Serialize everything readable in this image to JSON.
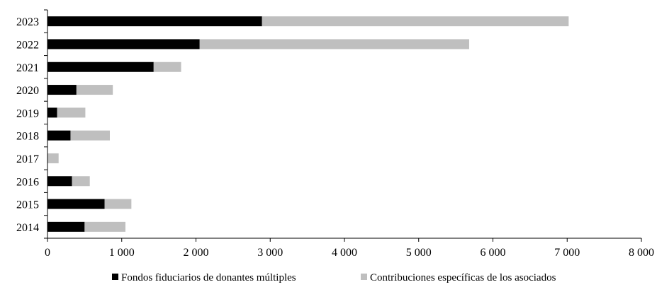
{
  "chart_data": {
    "type": "bar",
    "orientation": "horizontal",
    "stacked": true,
    "title": "",
    "xlabel": "",
    "ylabel": "",
    "categories": [
      "2014",
      "2015",
      "2016",
      "2017",
      "2018",
      "2019",
      "2020",
      "2021",
      "2022",
      "2023"
    ],
    "series": [
      {
        "name": "Fondos fiduciarios de donantes múltiples",
        "color": "#000000",
        "values": [
          500,
          770,
          330,
          0,
          310,
          130,
          390,
          1430,
          2050,
          2890
        ]
      },
      {
        "name": "Contribuciones específicas de los asociados",
        "color": "#bfbfbf",
        "values": [
          550,
          360,
          240,
          150,
          530,
          380,
          490,
          370,
          3630,
          4130
        ]
      }
    ],
    "xlim": [
      0,
      8000
    ],
    "xticks": [
      0,
      1000,
      2000,
      3000,
      4000,
      5000,
      6000,
      7000,
      8000
    ],
    "xtick_labels": [
      "0",
      "1 000",
      "2 000",
      "3 000",
      "4 000",
      "5 000",
      "6 000",
      "7 000",
      "8 000"
    ],
    "grid": false,
    "legend_position": "bottom"
  }
}
